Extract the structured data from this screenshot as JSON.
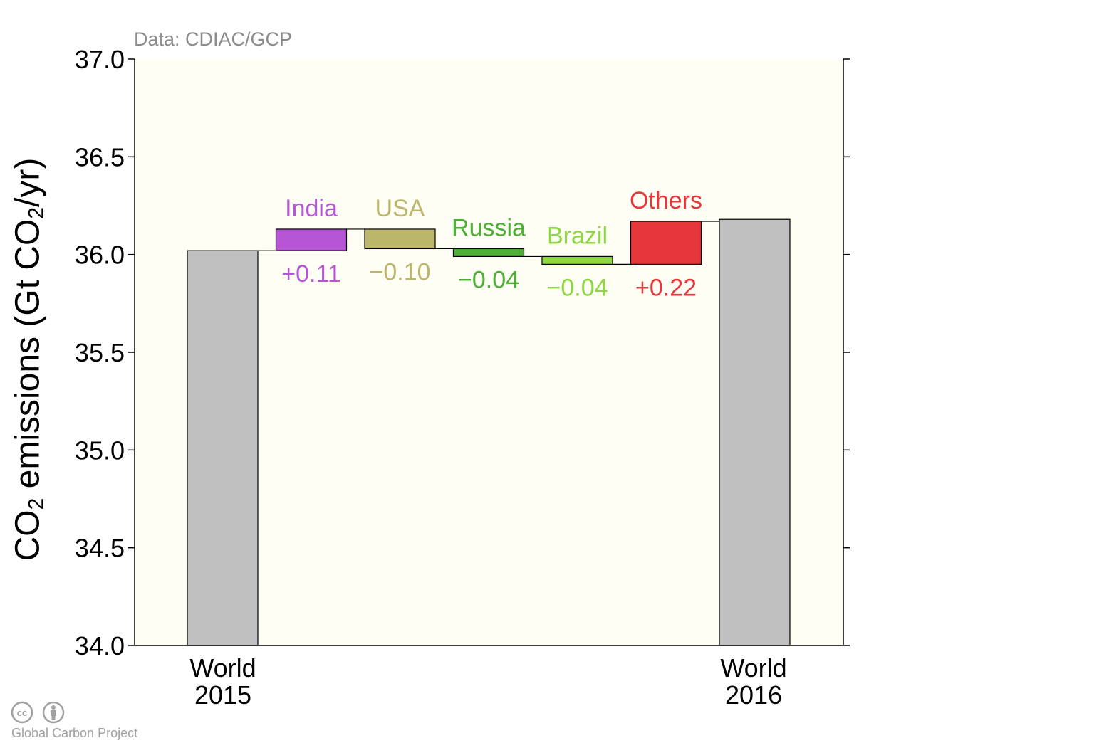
{
  "source_note": "Data: CDIAC/GCP",
  "credit": "Global Carbon Project",
  "y_axis_label": {
    "prefix": "CO",
    "sub1": "2",
    "mid": " emissions (Gt CO",
    "sub2": "2",
    "suffix": "/yr)"
  },
  "chart_data": {
    "type": "waterfall",
    "ylabel": "CO2 emissions (Gt CO2/yr)",
    "ylim": [
      34.0,
      37.0
    ],
    "yticks": [
      "34.0",
      "34.5",
      "35.0",
      "35.5",
      "36.0",
      "36.5",
      "37.0"
    ],
    "background": "#fefef4",
    "totals": [
      {
        "label_line1": "World",
        "label_line2": "2015",
        "value": 36.02,
        "color": "#c0c0c0"
      },
      {
        "label_line1": "World",
        "label_line2": "2016",
        "value": 36.18,
        "color": "#c0c0c0"
      }
    ],
    "changes": [
      {
        "name": "India",
        "value": 0.11,
        "value_label": "+0.11",
        "color": "#b656d6"
      },
      {
        "name": "USA",
        "value": -0.1,
        "value_label": "−0.10",
        "color": "#bcb66b"
      },
      {
        "name": "Russia",
        "value": -0.04,
        "value_label": "−0.04",
        "color": "#4cb034"
      },
      {
        "name": "Brazil",
        "value": -0.04,
        "value_label": "−0.04",
        "color": "#8fd644"
      },
      {
        "name": "Others",
        "value": 0.22,
        "value_label": "+0.22",
        "color": "#e8373a"
      }
    ]
  }
}
